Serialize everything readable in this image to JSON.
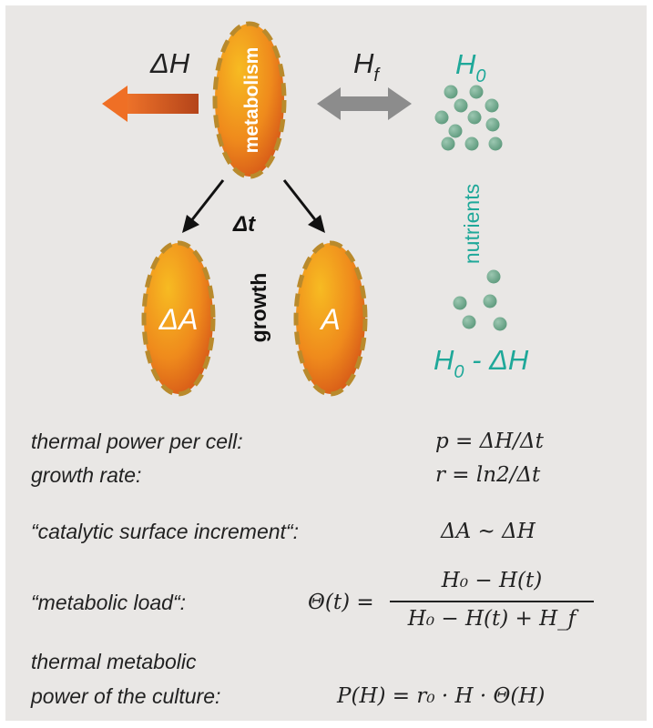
{
  "diagram": {
    "labels": {
      "delta_h": "ΔH",
      "h_f": "H",
      "h_f_sub": "f",
      "metabolism": "metabolism",
      "delta_t": "Δt",
      "growth": "growth",
      "delta_a": "ΔA",
      "a": "A",
      "h0": "H",
      "h0_sub": "0",
      "nutrients": "nutrients",
      "h0_minus": "H",
      "h0_minus_sub": "0",
      "h0_minus_rest": " - ΔH"
    },
    "colors": {
      "background": "#e9e7e5",
      "cell_light": "#f5b21f",
      "cell_dark": "#d9531a",
      "cell_border": "#b8892a",
      "heat_arrow": "#e2611c",
      "exchange_arrow": "#8c8c8c",
      "nutrient": "#6fa88c",
      "nutrient_text": "#1fa899"
    }
  },
  "equations": {
    "power_label": "thermal power per cell:",
    "power_eq": "p = ΔH/Δt",
    "rate_label": "growth rate:",
    "rate_eq": "r = ln2/Δt",
    "surface_label": "“catalytic surface increment“:",
    "surface_eq": "ΔA ~ ΔH",
    "load_label": "“metabolic load“:",
    "load_lhs": "Θ(t) =",
    "load_num": "H₀ − H(t)",
    "load_den": "H₀ − H(t) + H_f",
    "culture_label_1": "thermal metabolic",
    "culture_label_2": "power of the culture:",
    "culture_eq": "P(H) = r₀ · H · Θ(H)"
  }
}
